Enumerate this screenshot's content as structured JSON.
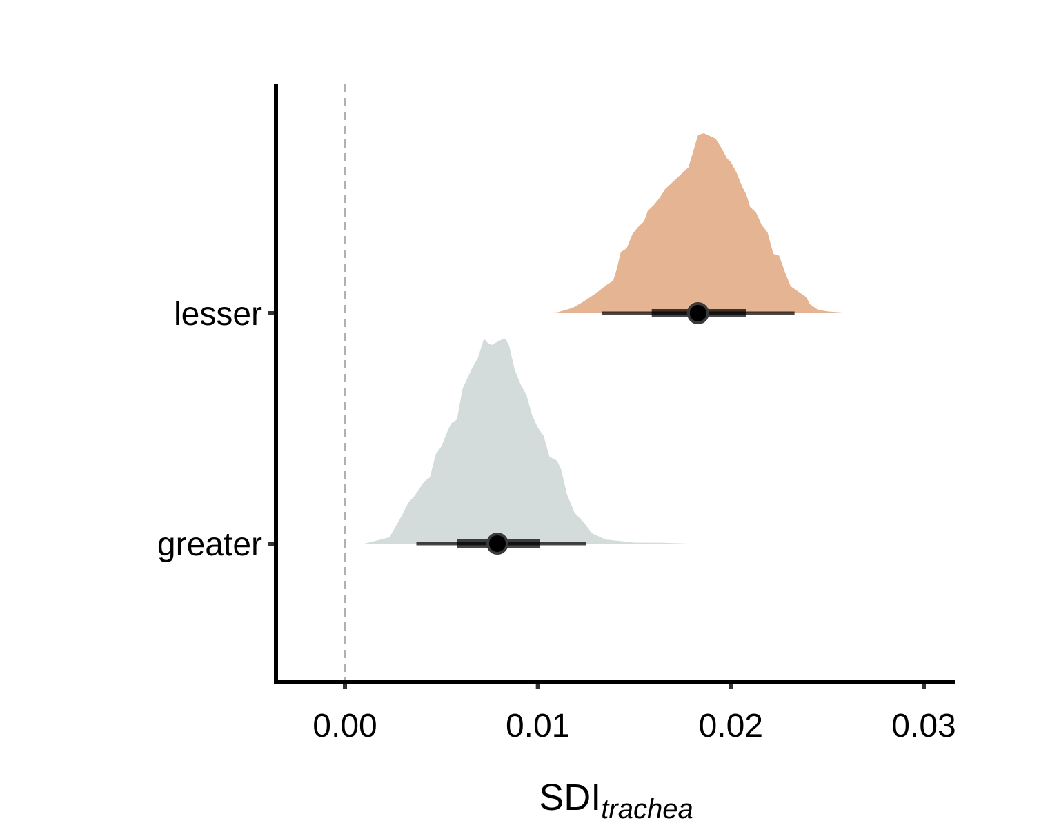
{
  "chart_data": {
    "type": "density",
    "title": "",
    "xlabel": "SDI",
    "xlabel_subscript": "trachea",
    "ylabel": "",
    "xlim": [
      -0.0036,
      0.0317
    ],
    "x_ticks": [
      0.0,
      0.01,
      0.02,
      0.03
    ],
    "x_tick_labels": [
      "0.00",
      "0.01",
      "0.02",
      "0.03"
    ],
    "reference_line": {
      "x": 0.0,
      "style": "dashed",
      "color": "#b0b0b0"
    },
    "categories": [
      "greater",
      "lesser"
    ],
    "grid": false,
    "legend": "none",
    "series": [
      {
        "name": "lesser",
        "color": "#e4b493",
        "point_estimate": 0.0183,
        "interval_66": [
          0.0159,
          0.0208
        ],
        "interval_95": [
          0.0133,
          0.0233
        ],
        "density_range": [
          0.0096,
          0.0263
        ],
        "density_x": [
          0.0096,
          0.011,
          0.0118,
          0.0123,
          0.013,
          0.0136,
          0.0139,
          0.0141,
          0.0143,
          0.0146,
          0.0149,
          0.0152,
          0.0155,
          0.0157,
          0.016,
          0.0163,
          0.0166,
          0.017,
          0.0175,
          0.0178,
          0.018,
          0.0183,
          0.0186,
          0.0189,
          0.0192,
          0.0195,
          0.0198,
          0.02,
          0.0203,
          0.0206,
          0.0208,
          0.021,
          0.0213,
          0.0216,
          0.0219,
          0.0222,
          0.0225,
          0.0228,
          0.0231,
          0.0235,
          0.0239,
          0.0241,
          0.0245,
          0.025,
          0.0263
        ],
        "density_y": [
          0.0,
          0.005,
          0.03,
          0.06,
          0.11,
          0.16,
          0.18,
          0.25,
          0.34,
          0.36,
          0.44,
          0.48,
          0.51,
          0.57,
          0.6,
          0.64,
          0.69,
          0.73,
          0.78,
          0.81,
          0.88,
          0.99,
          1.0,
          0.985,
          0.97,
          0.92,
          0.86,
          0.84,
          0.78,
          0.7,
          0.66,
          0.59,
          0.56,
          0.49,
          0.45,
          0.33,
          0.32,
          0.23,
          0.15,
          0.12,
          0.09,
          0.05,
          0.02,
          0.01,
          0.0
        ]
      },
      {
        "name": "greater",
        "color": "#d4dcdb",
        "point_estimate": 0.0079,
        "interval_66": [
          0.0058,
          0.0101
        ],
        "interval_95": [
          0.0037,
          0.0125
        ],
        "density_range": [
          0.001,
          0.0178
        ],
        "density_x": [
          0.001,
          0.0023,
          0.0028,
          0.0033,
          0.0036,
          0.0041,
          0.0044,
          0.0047,
          0.005,
          0.0053,
          0.0055,
          0.0058,
          0.0061,
          0.0063,
          0.0066,
          0.0069,
          0.0071,
          0.0072,
          0.0074,
          0.0076,
          0.0078,
          0.008,
          0.0082,
          0.0083,
          0.0085,
          0.0088,
          0.0091,
          0.0094,
          0.0097,
          0.01,
          0.0103,
          0.0106,
          0.011,
          0.0112,
          0.0115,
          0.0119,
          0.0124,
          0.0128,
          0.0135,
          0.015,
          0.0165,
          0.0178
        ],
        "density_y": [
          0.0,
          0.03,
          0.11,
          0.2,
          0.23,
          0.3,
          0.32,
          0.43,
          0.47,
          0.54,
          0.58,
          0.6,
          0.75,
          0.79,
          0.85,
          0.9,
          0.96,
          0.99,
          0.97,
          0.96,
          0.97,
          0.98,
          0.99,
          0.99,
          0.96,
          0.84,
          0.77,
          0.72,
          0.62,
          0.56,
          0.52,
          0.42,
          0.4,
          0.36,
          0.24,
          0.15,
          0.1,
          0.05,
          0.02,
          0.005,
          0.004,
          0.0
        ]
      }
    ]
  }
}
